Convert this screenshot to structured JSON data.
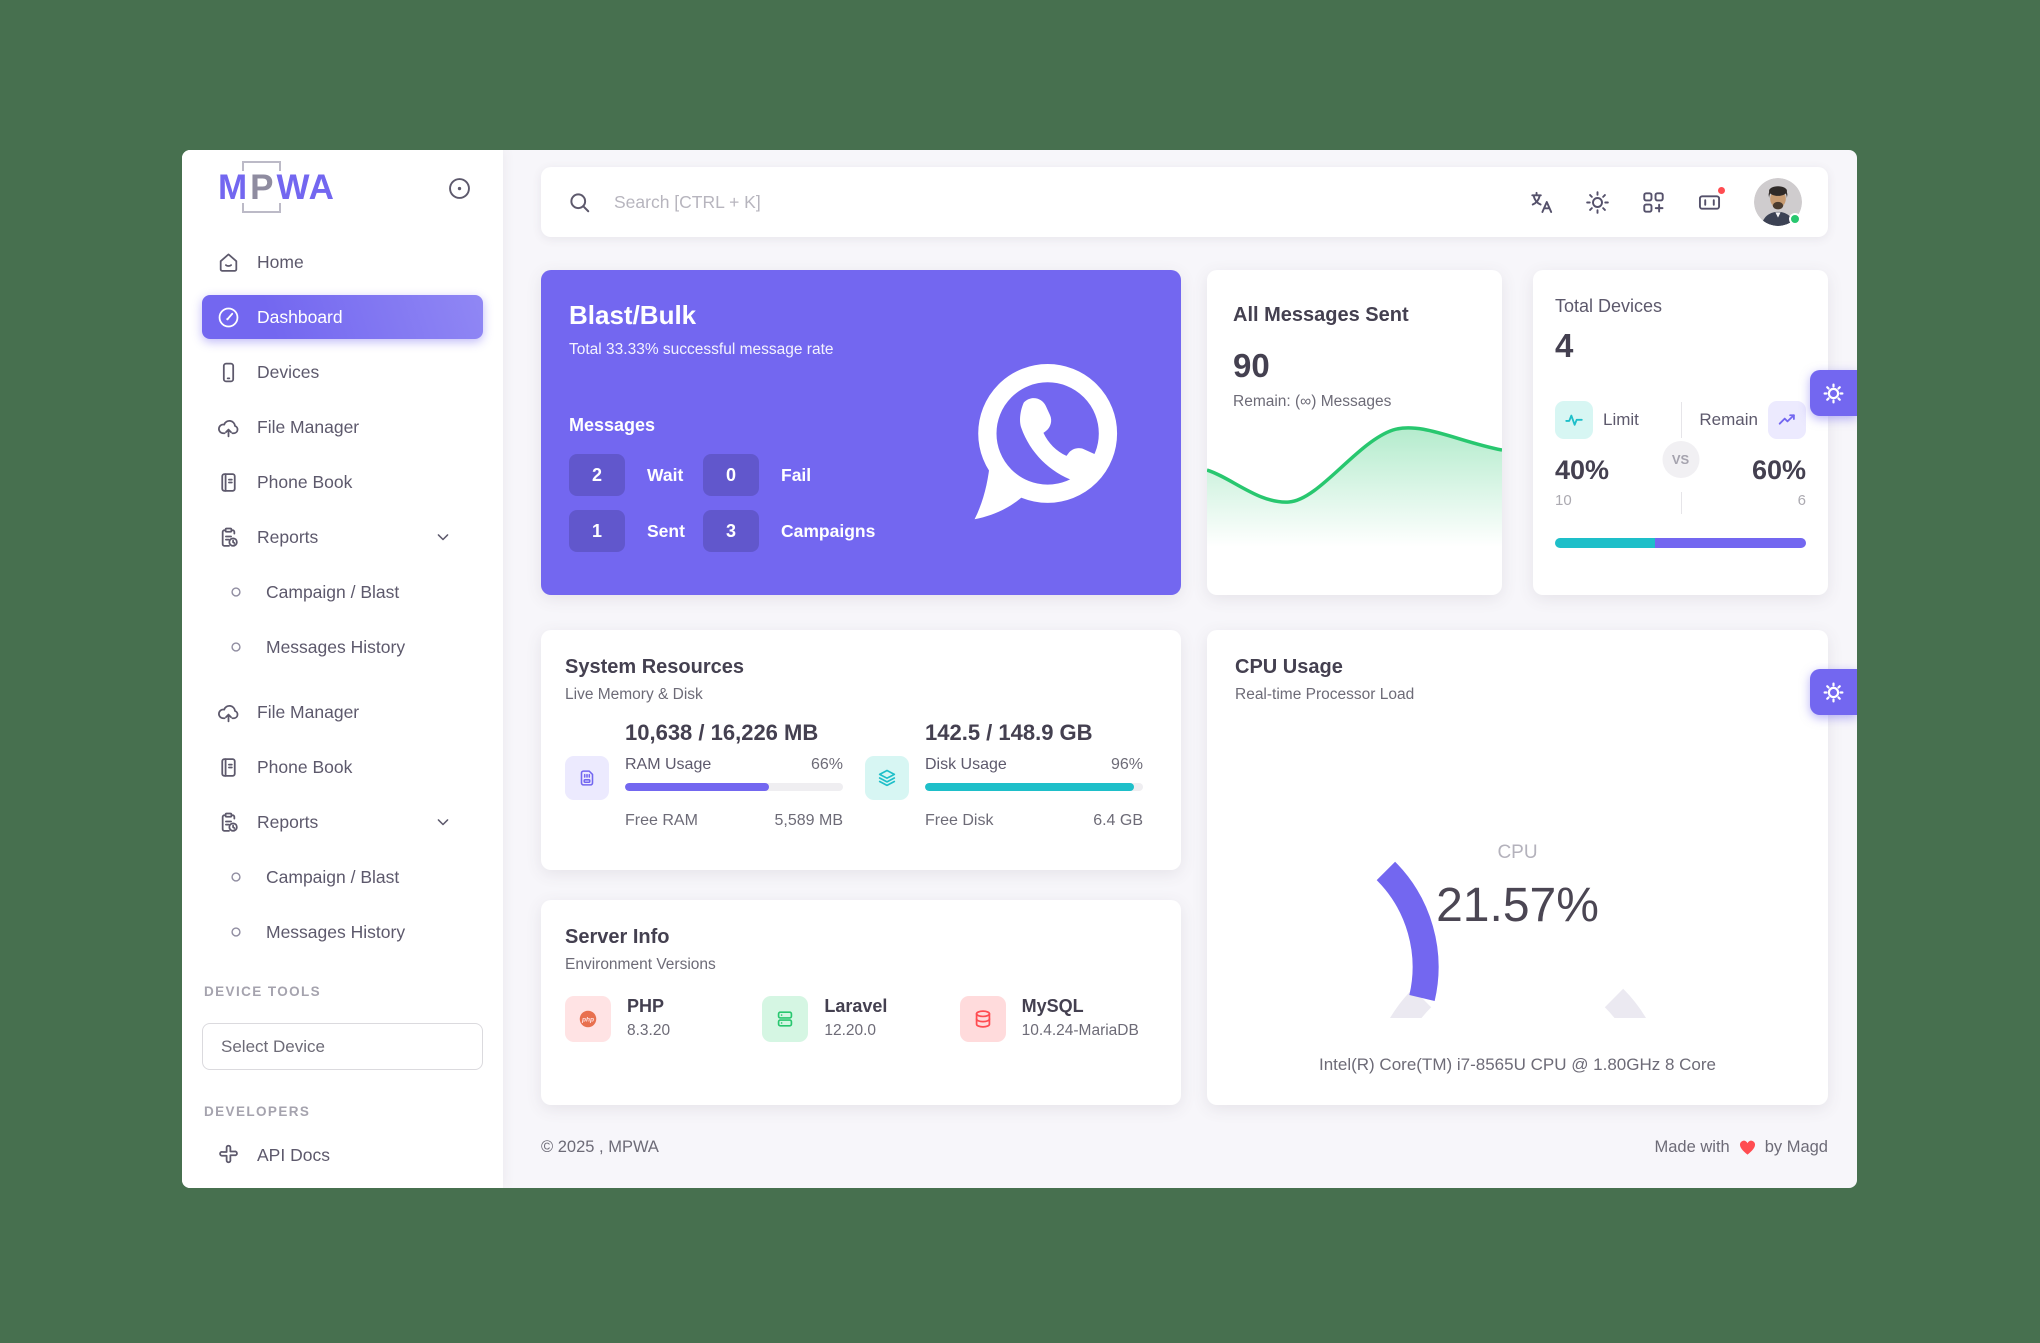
{
  "app": {
    "background": "#47704F",
    "primary": "#7367F0",
    "teal": "#1EBFC9",
    "green": "#28C76F"
  },
  "sidebar": {
    "logo_text_m": "M",
    "logo_text_p": "P",
    "logo_text_wa": "WA",
    "items": [
      {
        "label": "Home"
      },
      {
        "label": "Dashboard"
      },
      {
        "label": "Devices"
      },
      {
        "label": "File Manager"
      },
      {
        "label": "Phone Book"
      },
      {
        "label": "Reports"
      },
      {
        "label": "Campaign / Blast"
      },
      {
        "label": "Messages History"
      },
      {
        "label": "File Manager"
      },
      {
        "label": "Phone Book"
      },
      {
        "label": "Reports"
      },
      {
        "label": "Campaign / Blast"
      },
      {
        "label": "Messages History"
      }
    ],
    "device_tools_header": "DEVICE TOOLS",
    "select_device_label": "Select Device",
    "developers_header": "DEVELOPERS",
    "api_docs_label": "API Docs"
  },
  "topbar": {
    "search_placeholder": "Search [CTRL + K]"
  },
  "blast": {
    "title": "Blast/Bulk",
    "subtitle": "Total 33.33% successful message rate",
    "messages_label": "Messages",
    "stats": [
      {
        "value": "2",
        "label": "Wait"
      },
      {
        "value": "0",
        "label": "Fail"
      },
      {
        "value": "1",
        "label": "Sent"
      },
      {
        "value": "3",
        "label": "Campaigns"
      }
    ]
  },
  "all_messages": {
    "title": "All Messages Sent",
    "value": "90",
    "remain": "Remain: (∞) Messages"
  },
  "total_devices": {
    "title": "Total Devices",
    "value": "4",
    "limit_label": "Limit",
    "remain_label": "Remain",
    "vs_label": "VS",
    "limit_percent": "40%",
    "remain_percent": "60%",
    "limit_count": "10",
    "remain_count": "6"
  },
  "system": {
    "title": "System Resources",
    "subtitle": "Live Memory & Disk",
    "ram": {
      "value": "10,638 / 16,226 MB",
      "usage_label": "RAM Usage",
      "usage_percent": "66%",
      "free_label": "Free RAM",
      "free_value": "5,589 MB"
    },
    "disk": {
      "value": "142.5 / 148.9 GB",
      "usage_label": "Disk Usage",
      "usage_percent": "96%",
      "free_label": "Free Disk",
      "free_value": "6.4 GB"
    }
  },
  "cpu": {
    "title": "CPU Usage",
    "subtitle": "Real-time Processor Load",
    "gauge_label": "CPU",
    "gauge_value": "21.57%",
    "processor": "Intel(R) Core(TM) i7-8565U CPU @ 1.80GHz 8 Core"
  },
  "server": {
    "title": "Server Info",
    "subtitle": "Environment Versions",
    "items": [
      {
        "name": "PHP",
        "version": "8.3.20"
      },
      {
        "name": "Laravel",
        "version": "12.20.0"
      },
      {
        "name": "MySQL",
        "version": "10.4.24-MariaDB"
      }
    ]
  },
  "footer": {
    "copyright": "© 2025 , MPWA",
    "made_with": "Made with",
    "made_by": "by Magd"
  }
}
